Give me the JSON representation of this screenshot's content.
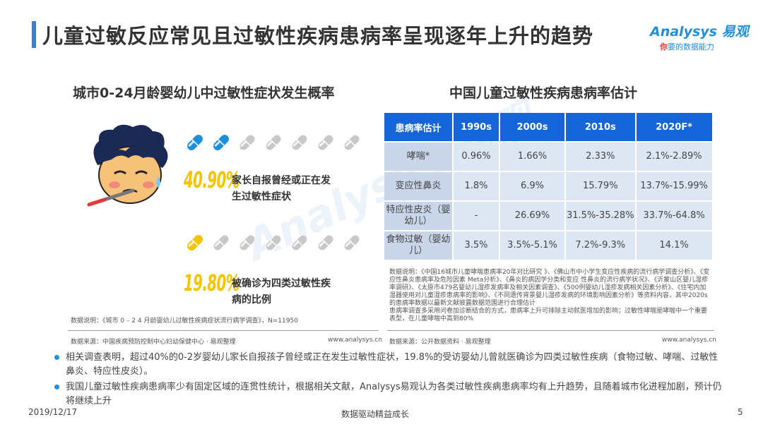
{
  "header": {
    "title": "儿童过敏反应常见且过敏性疾病患病率呈现逐年上升的趋势",
    "brand_name": "Analysys 易观",
    "brand_slogan_first": "你",
    "brand_slogan_rest": "要的数据能力"
  },
  "watermark": "Analysys 易观",
  "left": {
    "title": "城市0-24月龄婴幼儿中过敏性症状发生概率",
    "stat1": {
      "value": "40.90%",
      "desc": "家长自报曾经或正在发生过敏性症状",
      "fill_fraction": 0.409,
      "pill_color": "#1f8fdc"
    },
    "stat2": {
      "value": "19.80%",
      "desc": "被确诊为四类过敏性疾病的比例",
      "fill_fraction": 0.198,
      "pill_color": "#f5c400"
    },
    "data_note": "数据说明：《城市 0 – 2 4 月龄婴幼儿过敏性疾病症状流行病学调查》，N=11950",
    "source": "数据来源：中国疾病预防控制中心妇幼保健中心 · 易观整理",
    "site": "www.analysys.cn"
  },
  "right": {
    "title": "中国儿童过敏性疾病患病率估计",
    "table": {
      "headers": [
        "患病率估计",
        "1990s",
        "2000s",
        "2010s",
        "2020F*"
      ],
      "rows": [
        [
          "哮喘*",
          "0.96%",
          "1.66%",
          "2.33%",
          "2.1%-2.89%"
        ],
        [
          "变应性鼻炎",
          "1.8%",
          "6.9%",
          "15.79%",
          "13.7%-15.99%"
        ],
        [
          "特应性皮炎（婴幼儿）",
          "-",
          "26.69%",
          "31.5%-35.28%",
          "33.7%-64.8%"
        ],
        [
          "食物过敏（婴幼儿）",
          "3.5%",
          "3.5%-5.1%",
          "7.2%-9.3%",
          "14.1%"
        ]
      ]
    },
    "data_note": "数据说明：《中国16城市儿童哮喘患病率20年对比研究 》、《佛山市中小学生变应性疾病的流行病学调查分析》、《变应性鼻炎患病率及危险因素 Meta分析》、《鼻炎的病因学分类和变应 性鼻炎的流行病学状况》、《沂蒙山区婴儿湿疹率调研》、《太原市479名婴幼儿湿疹发病率及相关因素调查》、《500例婴幼儿湿疹发病相关因素分析》、《住宅内加湿器使用对儿童湿疹患病率的影响》、《不同遗传背景婴儿湿疹发病的环境影响因素分析》等资料内容，其中2020s的患病率数据以最新文献披露数据范围进行合理估计",
    "data_note2": "患病率调查多采用问卷加诊断结合的方式，患病率上升可排除主动就医增加的影响；过敏性哮喘是哮喘中一个重要表型，在儿童哮喘中高到80%",
    "source": "数据来源：公开数据资料 · 易观整理",
    "site": "www.analysys.cn"
  },
  "bullets": [
    "相关调查表明，超过40%的0-2岁婴幼儿家长自报孩子曾经或正在发生过敏性症状，19.8%的受访婴幼儿曾就医确诊为四类过敏性疾病（食物过敏、哮喘、过敏性鼻炎、特应性皮炎）。",
    "我国儿童过敏性疾病患病率少有固定区域的连贯性统计，根据相关文献，Analysys易观认为各类过敏性疾病患病率均有上升趋势，且随着城市化进程加剧，预计仍将继续上升"
  ],
  "footer": {
    "date": "2019/12/17",
    "slogan": "数据驱动精益成长",
    "page": "5"
  }
}
